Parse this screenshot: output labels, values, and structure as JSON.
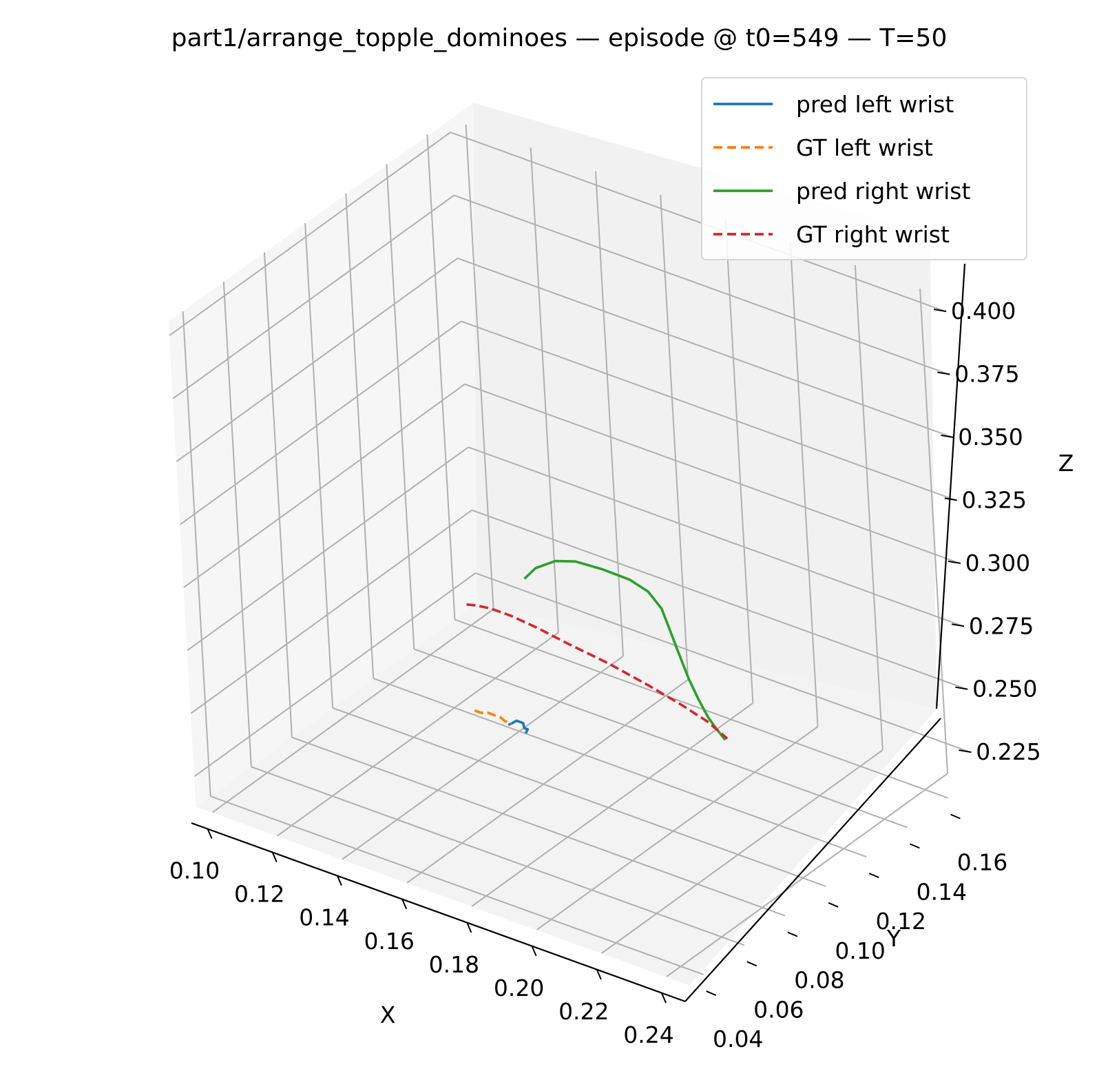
{
  "chart_data": {
    "type": "line",
    "projection": "3d",
    "title": "part1/arrange_topple_dominoes — episode @ t0=549 — T=50",
    "xlabel": "X",
    "ylabel": "Y",
    "zlabel": "Z",
    "x_ticks": [
      "0.10",
      "0.12",
      "0.14",
      "0.16",
      "0.18",
      "0.20",
      "0.22",
      "0.24"
    ],
    "y_ticks": [
      "0.04",
      "0.06",
      "0.08",
      "0.10",
      "0.12",
      "0.14",
      "0.16"
    ],
    "z_ticks": [
      "0.225",
      "0.250",
      "0.275",
      "0.300",
      "0.325",
      "0.350",
      "0.375",
      "0.400"
    ],
    "grid": true,
    "legend_position": "top-right",
    "series": [
      {
        "name": "pred left wrist",
        "color": "#1f77b4",
        "linestyle": "solid",
        "x": [
          0.162,
          0.163,
          0.164,
          0.165,
          0.166,
          0.167,
          0.168,
          0.168
        ],
        "y": [
          0.082,
          0.082,
          0.083,
          0.083,
          0.083,
          0.082,
          0.082,
          0.081
        ],
        "z": [
          0.248,
          0.249,
          0.25,
          0.25,
          0.25,
          0.249,
          0.249,
          0.248
        ]
      },
      {
        "name": "GT left wrist",
        "color": "#ff7f0e",
        "linestyle": "dashed",
        "x": [
          0.151,
          0.153,
          0.155,
          0.157,
          0.159,
          0.161,
          0.163
        ],
        "y": [
          0.083,
          0.083,
          0.083,
          0.083,
          0.083,
          0.082,
          0.082
        ],
        "z": [
          0.248,
          0.248,
          0.249,
          0.249,
          0.249,
          0.249,
          0.249
        ]
      },
      {
        "name": "pred right wrist",
        "color": "#2ca02c",
        "linestyle": "solid",
        "x": [
          0.167,
          0.17,
          0.175,
          0.18,
          0.187,
          0.194,
          0.199,
          0.203,
          0.206,
          0.209,
          0.213,
          0.217,
          0.221,
          0.225,
          0.228
        ],
        "y": [
          0.086,
          0.087,
          0.089,
          0.091,
          0.093,
          0.095,
          0.096,
          0.096,
          0.095,
          0.094,
          0.092,
          0.09,
          0.088,
          0.086,
          0.085
        ],
        "z": [
          0.306,
          0.311,
          0.315,
          0.316,
          0.315,
          0.313,
          0.31,
          0.305,
          0.298,
          0.291,
          0.284,
          0.279,
          0.275,
          0.273,
          0.271
        ]
      },
      {
        "name": "GT right wrist",
        "color": "#d62728",
        "linestyle": "dashed",
        "x": [
          0.149,
          0.152,
          0.156,
          0.162,
          0.17,
          0.18,
          0.192,
          0.204,
          0.214,
          0.222,
          0.228
        ],
        "y": [
          0.085,
          0.085,
          0.086,
          0.086,
          0.086,
          0.086,
          0.086,
          0.086,
          0.086,
          0.086,
          0.086
        ],
        "z": [
          0.288,
          0.289,
          0.289,
          0.289,
          0.288,
          0.286,
          0.284,
          0.281,
          0.278,
          0.275,
          0.271
        ]
      }
    ]
  }
}
